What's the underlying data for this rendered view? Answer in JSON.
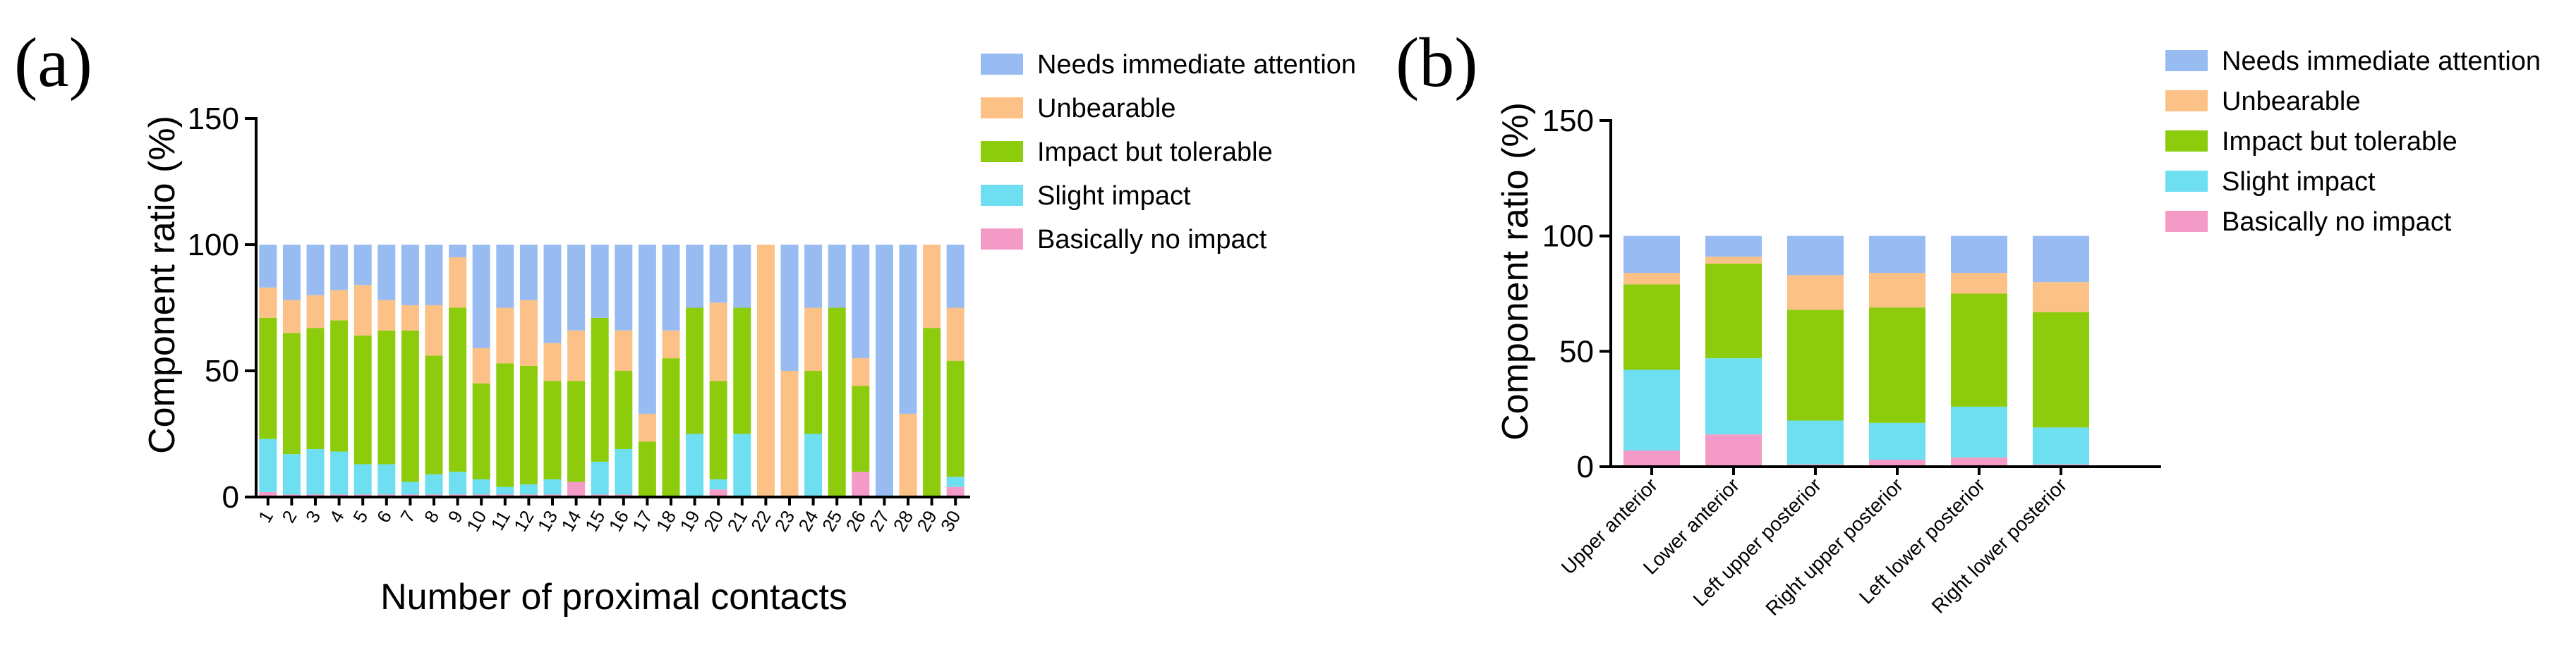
{
  "chart_data": [
    {
      "type": "bar",
      "stacked": true,
      "panel_label": "(a)",
      "title": "",
      "xlabel": "Number of proximal contacts",
      "ylabel": "Component ratio (%)",
      "ylim": [
        0,
        150
      ],
      "yticks": [
        "0",
        "50",
        "100",
        "150"
      ],
      "categories": [
        "1",
        "2",
        "3",
        "4",
        "5",
        "6",
        "7",
        "8",
        "9",
        "10",
        "11",
        "12",
        "13",
        "14",
        "15",
        "16",
        "17",
        "18",
        "19",
        "20",
        "21",
        "22",
        "23",
        "24",
        "25",
        "26",
        "27",
        "28",
        "29",
        "30"
      ],
      "series": [
        {
          "name": "Basically no impact",
          "color": "#f49ac6",
          "values": [
            2,
            1,
            1,
            1,
            1,
            1,
            1,
            1,
            1,
            1,
            1,
            1,
            1,
            6,
            1,
            1,
            0,
            0,
            0,
            3,
            0,
            0,
            0,
            0,
            0,
            10,
            0,
            0,
            0,
            4
          ]
        },
        {
          "name": "Slight impact",
          "color": "#6ddff0",
          "values": [
            21,
            16,
            18,
            17,
            12,
            12,
            5,
            8,
            9,
            6,
            3,
            4,
            6,
            0,
            13,
            18,
            0,
            0,
            25,
            4,
            25,
            0,
            0,
            25,
            0,
            0,
            0,
            0,
            0,
            4
          ]
        },
        {
          "name": "Impact but tolerable",
          "color": "#8ccc0c",
          "values": [
            48,
            48,
            48,
            52,
            51,
            53,
            60,
            47,
            65,
            38,
            49,
            47,
            39,
            40,
            57,
            31,
            22,
            55,
            50,
            39,
            50,
            0,
            0,
            25,
            75,
            34,
            0,
            0,
            67,
            46
          ]
        },
        {
          "name": "Unbearable",
          "color": "#fcc186",
          "values": [
            12,
            13,
            13,
            12,
            20,
            12,
            10,
            20,
            20,
            14,
            22,
            26,
            15,
            20,
            0,
            16,
            11,
            11,
            0,
            31,
            0,
            100,
            50,
            25,
            0,
            11,
            0,
            33,
            33,
            21
          ]
        },
        {
          "name": "Needs immediate attention",
          "color": "#98bcf2",
          "values": [
            17,
            22,
            20,
            18,
            16,
            22,
            24,
            24,
            5,
            41,
            25,
            22,
            39,
            34,
            29,
            34,
            67,
            34,
            25,
            23,
            25,
            0,
            50,
            25,
            25,
            45,
            100,
            67,
            0,
            25
          ]
        }
      ],
      "legend": {
        "position": "top-right",
        "entries": [
          "Needs immediate attention",
          "Unbearable",
          "Impact but tolerable",
          "Slight impact",
          "Basically no impact"
        ]
      }
    },
    {
      "type": "bar",
      "stacked": true,
      "panel_label": "(b)",
      "title": "",
      "xlabel": "",
      "ylabel": "Component ratio (%)",
      "ylim": [
        0,
        150
      ],
      "yticks": [
        "0",
        "50",
        "100",
        "150"
      ],
      "categories": [
        "Upper anterior",
        "Lower anterior",
        "Left upper posterior",
        "Right upper posterior",
        "Left lower posterior",
        "Right lower posterior"
      ],
      "series": [
        {
          "name": "Basically no impact",
          "color": "#f49ac6",
          "values": [
            7,
            14,
            1,
            3,
            4,
            1
          ]
        },
        {
          "name": "Slight impact",
          "color": "#6ddff0",
          "values": [
            35,
            33,
            19,
            16,
            22,
            16
          ]
        },
        {
          "name": "Impact but tolerable",
          "color": "#8ccc0c",
          "values": [
            37,
            41,
            48,
            50,
            49,
            50
          ]
        },
        {
          "name": "Unbearable",
          "color": "#fcc186",
          "values": [
            5,
            3,
            15,
            15,
            9,
            13
          ]
        },
        {
          "name": "Needs immediate attention",
          "color": "#98bcf2",
          "values": [
            16,
            9,
            17,
            16,
            16,
            20
          ]
        }
      ],
      "legend": {
        "position": "top-right",
        "entries": [
          "Needs immediate attention",
          "Unbearable",
          "Impact but tolerable",
          "Slight impact",
          "Basically no impact"
        ]
      }
    }
  ]
}
